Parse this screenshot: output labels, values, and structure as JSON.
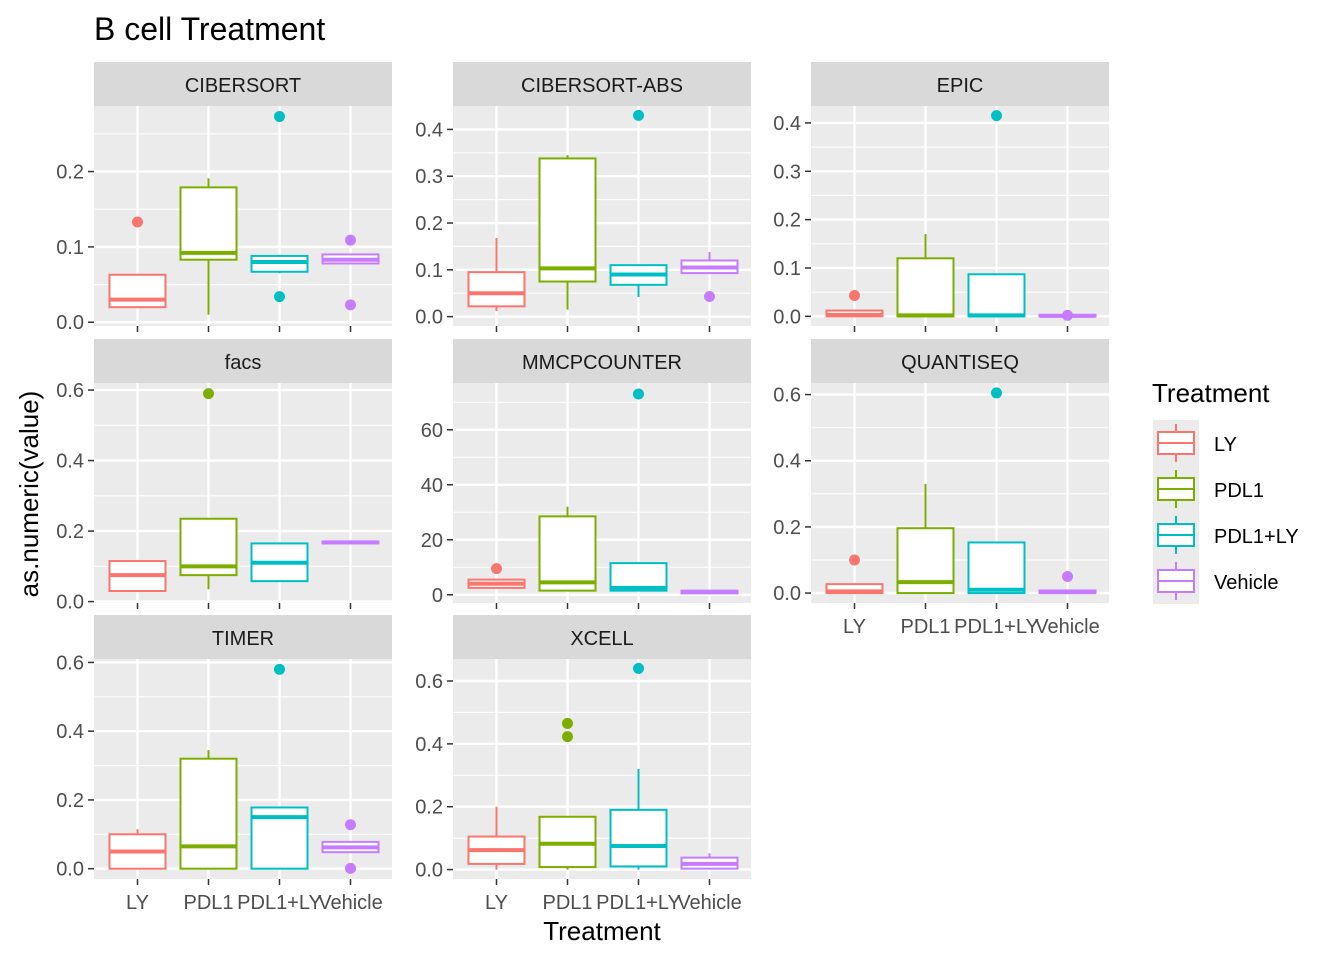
{
  "title": "B cell Treatment",
  "xlabel": "Treatment",
  "ylabel": "as.numeric(value)",
  "legend": {
    "title": "Treatment",
    "position": "right",
    "items": [
      {
        "label": "LY",
        "color": "#F8766D"
      },
      {
        "label": "PDL1",
        "color": "#7CAE00"
      },
      {
        "label": "PDL1+LY",
        "color": "#00BFC4"
      },
      {
        "label": "Vehicle",
        "color": "#C77CFF"
      }
    ]
  },
  "colors": {
    "panel_bg": "#EBEBEB",
    "strip_bg": "#D9D9D9",
    "grid": "#FFFFFF",
    "text": "#4D4D4D"
  },
  "chart_data": {
    "type": "boxplot",
    "grid": true,
    "facet_scales": "free_y",
    "categories": [
      "LY",
      "PDL1",
      "PDL1+LY",
      "Vehicle"
    ],
    "panels": [
      {
        "name": "CIBERSORT",
        "ylim": [
          -0.005,
          0.287
        ],
        "yticks": [
          0.0,
          0.1,
          0.2
        ],
        "tick_labels": [
          "0.0",
          "0.1",
          "0.2"
        ],
        "show_x_labels": false,
        "boxes": [
          {
            "q1": 0.02,
            "median": 0.03,
            "q3": 0.063,
            "wlow": 0.02,
            "whigh": 0.063,
            "outliers": [
              0.133
            ]
          },
          {
            "q1": 0.083,
            "median": 0.092,
            "q3": 0.179,
            "wlow": 0.01,
            "whigh": 0.191,
            "outliers": []
          },
          {
            "q1": 0.067,
            "median": 0.08,
            "q3": 0.088,
            "wlow": 0.065,
            "whigh": 0.088,
            "outliers": [
              0.273,
              0.034
            ]
          },
          {
            "q1": 0.078,
            "median": 0.083,
            "q3": 0.09,
            "wlow": 0.078,
            "whigh": 0.09,
            "outliers": [
              0.109,
              0.023
            ]
          }
        ]
      },
      {
        "name": "CIBERSORT-ABS",
        "ylim": [
          -0.02,
          0.45
        ],
        "yticks": [
          0.0,
          0.1,
          0.2,
          0.3,
          0.4
        ],
        "tick_labels": [
          "0.0",
          "0.1",
          "0.2",
          "0.3",
          "0.4"
        ],
        "show_x_labels": false,
        "boxes": [
          {
            "q1": 0.022,
            "median": 0.05,
            "q3": 0.095,
            "wlow": 0.012,
            "whigh": 0.168,
            "outliers": []
          },
          {
            "q1": 0.075,
            "median": 0.103,
            "q3": 0.338,
            "wlow": 0.015,
            "whigh": 0.345,
            "outliers": []
          },
          {
            "q1": 0.068,
            "median": 0.09,
            "q3": 0.11,
            "wlow": 0.042,
            "whigh": 0.11,
            "outliers": [
              0.43
            ]
          },
          {
            "q1": 0.093,
            "median": 0.105,
            "q3": 0.12,
            "wlow": 0.093,
            "whigh": 0.138,
            "outliers": [
              0.043
            ]
          }
        ]
      },
      {
        "name": "EPIC",
        "ylim": [
          -0.02,
          0.435
        ],
        "yticks": [
          0.0,
          0.1,
          0.2,
          0.3,
          0.4
        ],
        "tick_labels": [
          "0.0",
          "0.1",
          "0.2",
          "0.3",
          "0.4"
        ],
        "show_x_labels": false,
        "boxes": [
          {
            "q1": 0.0,
            "median": 0.003,
            "q3": 0.012,
            "wlow": 0.0,
            "whigh": 0.012,
            "outliers": [
              0.043
            ]
          },
          {
            "q1": 0.0,
            "median": 0.002,
            "q3": 0.12,
            "wlow": 0.0,
            "whigh": 0.17,
            "outliers": []
          },
          {
            "q1": 0.0,
            "median": 0.002,
            "q3": 0.087,
            "wlow": 0.0,
            "whigh": 0.087,
            "outliers": [
              0.415
            ]
          },
          {
            "q1": 0.0,
            "median": 0.001,
            "q3": 0.003,
            "wlow": 0.0,
            "whigh": 0.003,
            "outliers": [
              0.002
            ]
          }
        ]
      },
      {
        "name": "facs",
        "ylim": [
          -0.004,
          0.62
        ],
        "yticks": [
          0.0,
          0.2,
          0.4,
          0.6
        ],
        "tick_labels": [
          "0.0",
          "0.2",
          "0.4",
          "0.6"
        ],
        "show_x_labels": false,
        "boxes": [
          {
            "q1": 0.03,
            "median": 0.075,
            "q3": 0.115,
            "wlow": 0.03,
            "whigh": 0.115,
            "outliers": []
          },
          {
            "q1": 0.075,
            "median": 0.1,
            "q3": 0.235,
            "wlow": 0.035,
            "whigh": 0.235,
            "outliers": [
              0.59
            ]
          },
          {
            "q1": 0.058,
            "median": 0.11,
            "q3": 0.165,
            "wlow": 0.058,
            "whigh": 0.165,
            "outliers": []
          },
          {
            "q1": 0.165,
            "median": 0.168,
            "q3": 0.17,
            "wlow": 0.165,
            "whigh": 0.17,
            "outliers": []
          }
        ]
      },
      {
        "name": "MMCPCOUNTER",
        "ylim": [
          -3,
          77
        ],
        "yticks": [
          0,
          20,
          40,
          60
        ],
        "tick_labels": [
          "0",
          "20",
          "40",
          "60"
        ],
        "show_x_labels": false,
        "boxes": [
          {
            "q1": 2.5,
            "median": 4.0,
            "q3": 5.5,
            "wlow": 2.5,
            "whigh": 5.5,
            "outliers": [
              9.5
            ]
          },
          {
            "q1": 1.5,
            "median": 4.5,
            "q3": 28.5,
            "wlow": 1.5,
            "whigh": 32.0,
            "outliers": []
          },
          {
            "q1": 1.5,
            "median": 2.5,
            "q3": 11.5,
            "wlow": 1.5,
            "whigh": 11.5,
            "outliers": [
              73
            ]
          },
          {
            "q1": 0.5,
            "median": 1.0,
            "q3": 1.5,
            "wlow": 0.5,
            "whigh": 1.5,
            "outliers": []
          }
        ]
      },
      {
        "name": "QUANTISEQ",
        "ylim": [
          -0.03,
          0.635
        ],
        "yticks": [
          0.0,
          0.2,
          0.4,
          0.6
        ],
        "tick_labels": [
          "0.0",
          "0.2",
          "0.4",
          "0.6"
        ],
        "show_x_labels": true,
        "boxes": [
          {
            "q1": 0.0,
            "median": 0.005,
            "q3": 0.027,
            "wlow": 0.0,
            "whigh": 0.027,
            "outliers": [
              0.1
            ]
          },
          {
            "q1": 0.0,
            "median": 0.033,
            "q3": 0.196,
            "wlow": 0.0,
            "whigh": 0.33,
            "outliers": []
          },
          {
            "q1": 0.0,
            "median": 0.01,
            "q3": 0.153,
            "wlow": 0.0,
            "whigh": 0.153,
            "outliers": [
              0.605
            ]
          },
          {
            "q1": 0.0,
            "median": 0.003,
            "q3": 0.008,
            "wlow": 0.0,
            "whigh": 0.008,
            "outliers": [
              0.05
            ]
          }
        ]
      },
      {
        "name": "TIMER",
        "ylim": [
          -0.03,
          0.61
        ],
        "yticks": [
          0.0,
          0.2,
          0.4,
          0.6
        ],
        "tick_labels": [
          "0.0",
          "0.2",
          "0.4",
          "0.6"
        ],
        "show_x_labels": true,
        "boxes": [
          {
            "q1": 0.0,
            "median": 0.05,
            "q3": 0.1,
            "wlow": 0.0,
            "whigh": 0.115,
            "outliers": []
          },
          {
            "q1": 0.0,
            "median": 0.065,
            "q3": 0.32,
            "wlow": 0.0,
            "whigh": 0.345,
            "outliers": []
          },
          {
            "q1": 0.0,
            "median": 0.15,
            "q3": 0.178,
            "wlow": 0.0,
            "whigh": 0.178,
            "outliers": [
              0.58
            ]
          },
          {
            "q1": 0.048,
            "median": 0.062,
            "q3": 0.078,
            "wlow": 0.048,
            "whigh": 0.078,
            "outliers": [
              0.128,
              0.001
            ]
          }
        ]
      },
      {
        "name": "XCELL",
        "ylim": [
          -0.03,
          0.67
        ],
        "yticks": [
          0.0,
          0.2,
          0.4,
          0.6
        ],
        "tick_labels": [
          "0.0",
          "0.2",
          "0.4",
          "0.6"
        ],
        "show_x_labels": true,
        "boxes": [
          {
            "q1": 0.018,
            "median": 0.062,
            "q3": 0.105,
            "wlow": 0.0,
            "whigh": 0.2,
            "outliers": []
          },
          {
            "q1": 0.008,
            "median": 0.082,
            "q3": 0.168,
            "wlow": 0.0,
            "whigh": 0.168,
            "outliers": [
              0.465,
              0.423
            ]
          },
          {
            "q1": 0.01,
            "median": 0.075,
            "q3": 0.19,
            "wlow": 0.0,
            "whigh": 0.32,
            "outliers": [
              0.64
            ]
          },
          {
            "q1": 0.003,
            "median": 0.018,
            "q3": 0.038,
            "wlow": 0.0,
            "whigh": 0.052,
            "outliers": []
          }
        ]
      }
    ]
  }
}
